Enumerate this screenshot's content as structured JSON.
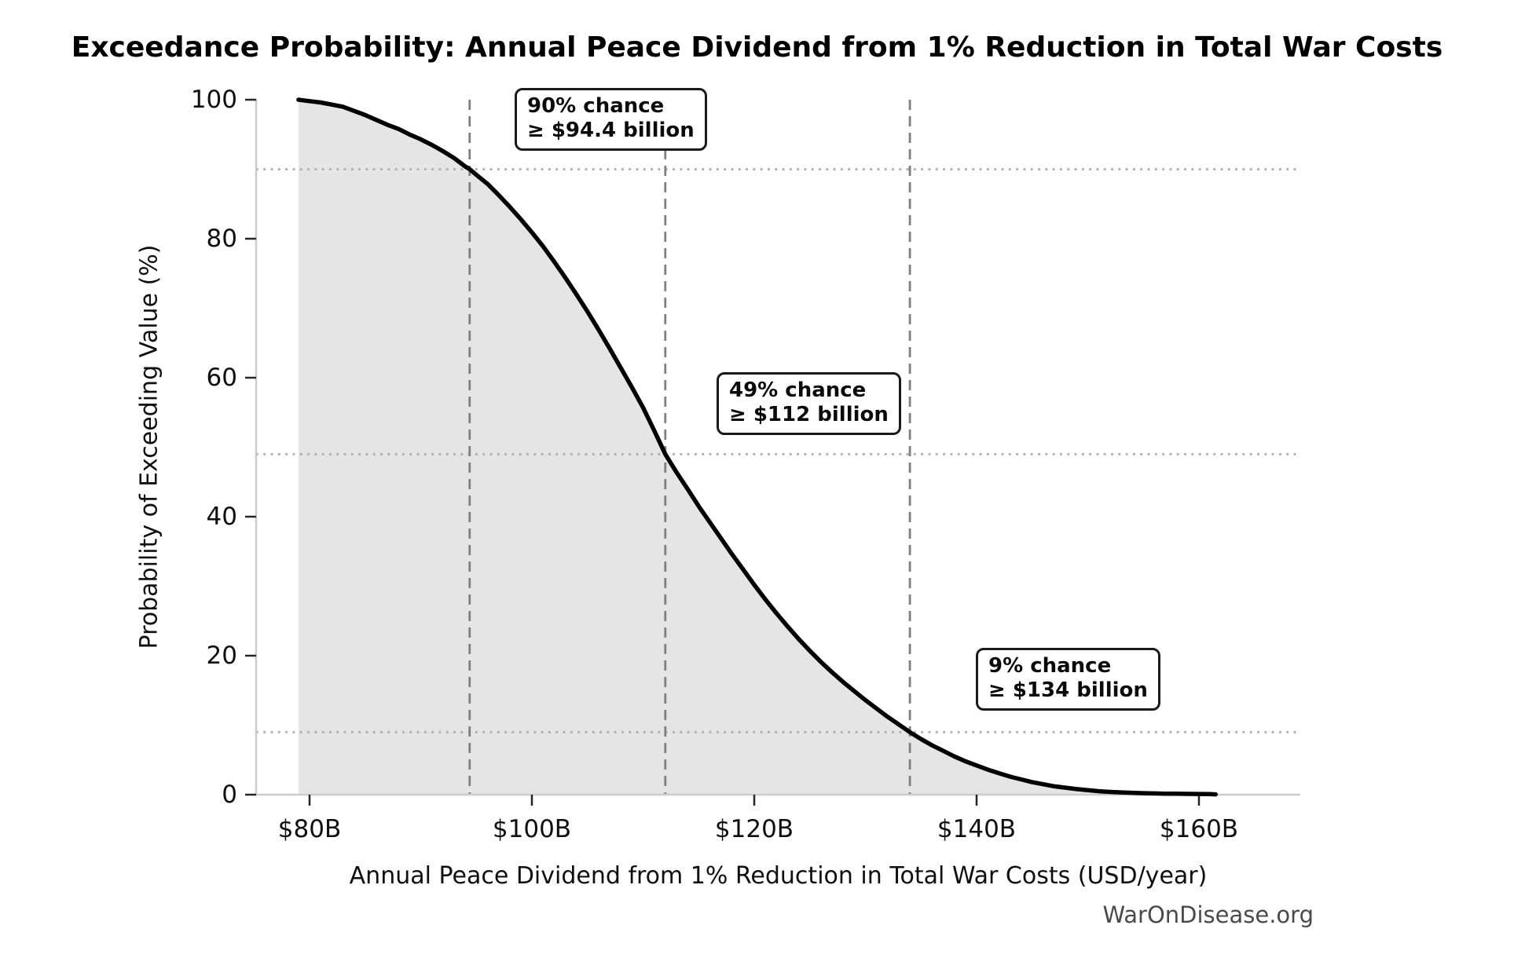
{
  "title": "Exceedance Probability: Annual Peace Dividend from 1% Reduction in Total War Costs",
  "watermark": "WarOnDisease.org",
  "axes": {
    "x_label": "Annual Peace Dividend from 1% Reduction in Total War Costs (USD/year)",
    "y_label": "Probability of Exceeding Value (%)",
    "x_ticks": [
      {
        "value": 80,
        "label": "$80B"
      },
      {
        "value": 100,
        "label": "$100B"
      },
      {
        "value": 120,
        "label": "$120B"
      },
      {
        "value": 140,
        "label": "$140B"
      },
      {
        "value": 160,
        "label": "$160B"
      }
    ],
    "y_ticks": [
      {
        "value": 0,
        "label": "0"
      },
      {
        "value": 20,
        "label": "20"
      },
      {
        "value": 40,
        "label": "40"
      },
      {
        "value": 60,
        "label": "60"
      },
      {
        "value": 80,
        "label": "80"
      },
      {
        "value": 100,
        "label": "100"
      }
    ]
  },
  "annotations": [
    {
      "line1": "90% chance",
      "line2": "≥ $94.4 billion",
      "chance_pct": 90,
      "value_B": 94.4
    },
    {
      "line1": "49% chance",
      "line2": "≥ $112 billion",
      "chance_pct": 49,
      "value_B": 112
    },
    {
      "line1": "9% chance",
      "line2": "≥ $134 billion",
      "chance_pct": 9,
      "value_B": 134
    }
  ],
  "colors": {
    "curve": "#000000",
    "area_fill": "#e5e5e5",
    "dashed_reference": "#7f7f7f",
    "dotted_reference": "#b0b0b0",
    "axis_spine": "#cccccc",
    "tick_mark": "#262626",
    "annotation_border": "#1a1a1a",
    "watermark_text": "#4a4a4a"
  },
  "chart_data": {
    "type": "line",
    "title": "Exceedance Probability: Annual Peace Dividend from 1% Reduction in Total War Costs",
    "xlabel": "Annual Peace Dividend from 1% Reduction in Total War Costs (USD/year)",
    "ylabel": "Probability of Exceeding Value (%)",
    "x_unit": "USD billions per year",
    "y_unit": "percent",
    "xlim": [
      75.2,
      169.1
    ],
    "ylim": [
      0,
      100
    ],
    "grid": "reference lines only",
    "legend": "none",
    "style": {
      "line_color": "#000000",
      "line_width": 5.5,
      "fill_under_curve": "#e5e5e5"
    },
    "reference_lines": {
      "vertical_dashed_at_B": [
        94.4,
        112,
        134
      ],
      "horizontal_dotted_at_pct": [
        90,
        49,
        9
      ]
    },
    "series": [
      {
        "name": "Exceedance probability of annual peace dividend",
        "points_value_B_vs_prob_pct": [
          [
            79,
            100
          ],
          [
            80,
            99.8
          ],
          [
            81,
            99.6
          ],
          [
            82,
            99.3
          ],
          [
            83,
            99.0
          ],
          [
            84,
            98.4
          ],
          [
            85,
            97.8
          ],
          [
            86,
            97.1
          ],
          [
            87,
            96.4
          ],
          [
            88,
            95.8
          ],
          [
            89,
            95.0
          ],
          [
            90,
            94.3
          ],
          [
            91,
            93.5
          ],
          [
            92,
            92.6
          ],
          [
            93,
            91.6
          ],
          [
            94,
            90.4
          ],
          [
            94.4,
            90.0
          ],
          [
            95,
            89.2
          ],
          [
            96,
            87.9
          ],
          [
            97,
            86.3
          ],
          [
            98,
            84.6
          ],
          [
            99,
            82.8
          ],
          [
            100,
            80.9
          ],
          [
            101,
            78.9
          ],
          [
            102,
            76.7
          ],
          [
            103,
            74.4
          ],
          [
            104,
            72.0
          ],
          [
            105,
            69.5
          ],
          [
            106,
            66.9
          ],
          [
            107,
            64.2
          ],
          [
            108,
            61.4
          ],
          [
            109,
            58.6
          ],
          [
            110,
            55.7
          ],
          [
            111,
            52.4
          ],
          [
            112,
            49.0
          ],
          [
            113,
            46.4
          ],
          [
            114,
            44.0
          ],
          [
            115,
            41.5
          ],
          [
            116,
            39.2
          ],
          [
            117,
            36.9
          ],
          [
            118,
            34.6
          ],
          [
            119,
            32.4
          ],
          [
            120,
            30.2
          ],
          [
            121,
            28.1
          ],
          [
            122,
            26.1
          ],
          [
            123,
            24.2
          ],
          [
            124,
            22.4
          ],
          [
            125,
            20.7
          ],
          [
            126,
            19.1
          ],
          [
            127,
            17.6
          ],
          [
            128,
            16.2
          ],
          [
            129,
            14.9
          ],
          [
            130,
            13.6
          ],
          [
            131,
            12.4
          ],
          [
            132,
            11.2
          ],
          [
            133,
            10.1
          ],
          [
            134,
            9.0
          ],
          [
            135,
            8.0
          ],
          [
            136,
            7.1
          ],
          [
            137,
            6.3
          ],
          [
            138,
            5.5
          ],
          [
            139,
            4.8
          ],
          [
            140,
            4.2
          ],
          [
            141,
            3.6
          ],
          [
            142,
            3.1
          ],
          [
            143,
            2.6
          ],
          [
            144,
            2.2
          ],
          [
            145,
            1.8
          ],
          [
            146,
            1.5
          ],
          [
            147,
            1.2
          ],
          [
            148,
            1.0
          ],
          [
            149,
            0.8
          ],
          [
            150,
            0.65
          ],
          [
            151,
            0.5
          ],
          [
            152,
            0.4
          ],
          [
            153,
            0.33
          ],
          [
            154,
            0.27
          ],
          [
            155,
            0.22
          ],
          [
            156,
            0.18
          ],
          [
            157,
            0.15
          ],
          [
            158,
            0.13
          ],
          [
            159,
            0.11
          ],
          [
            160,
            0.1
          ],
          [
            161,
            0.08
          ],
          [
            161.5,
            0.05
          ]
        ]
      }
    ],
    "annotations": [
      {
        "text": "90% chance ≥ $94.4 billion",
        "x_B": 94.4,
        "prob_pct": 90
      },
      {
        "text": "49% chance ≥ $112 billion",
        "x_B": 112,
        "prob_pct": 49
      },
      {
        "text": "9% chance ≥ $134 billion",
        "x_B": 134,
        "prob_pct": 9
      }
    ],
    "watermark": "WarOnDisease.org"
  }
}
